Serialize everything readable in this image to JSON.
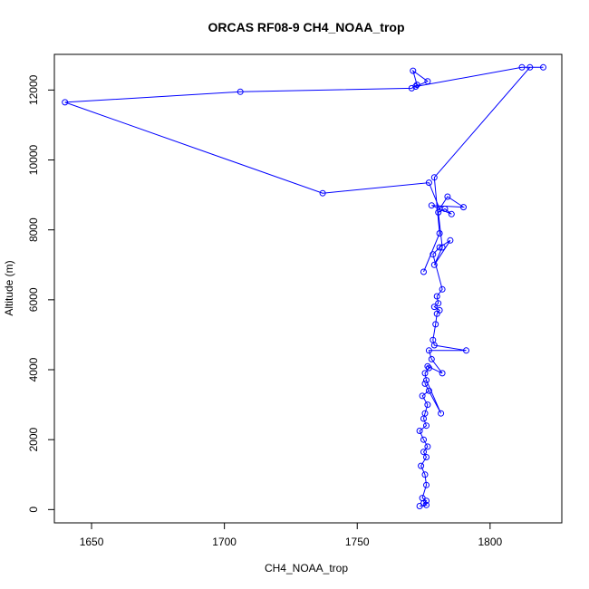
{
  "chart_data": {
    "type": "line",
    "title": "ORCAS RF08-9 CH4_NOAA_trop",
    "xlabel": "CH4_NOAA_trop",
    "ylabel": "Altitude (m)",
    "xlim": [
      1636,
      1827
    ],
    "ylim": [
      -380,
      13020
    ],
    "xticks": [
      1650,
      1700,
      1750,
      1800
    ],
    "yticks": [
      0,
      2000,
      4000,
      6000,
      8000,
      10000,
      12000
    ],
    "grid": false,
    "series_color": "#0000ff",
    "series": [
      {
        "x": [
          1773.5,
          1776.0,
          1775.0,
          1776.0,
          1774.5,
          1776.0,
          1775.5,
          1774.0,
          1776.0,
          1775.0,
          1776.5,
          1775.0,
          1773.5,
          1776.0,
          1775.0,
          1775.5,
          1776.5,
          1774.5,
          1777.0,
          1775.5,
          1781.5,
          1776.0,
          1775.5,
          1777.0,
          1776.5,
          1782.0,
          1778.0,
          1777.0,
          1791.0,
          1779.0,
          1778.5,
          1779.5,
          1780.0,
          1781.0,
          1779.0,
          1780.5,
          1780.0,
          1782.0,
          1778.5,
          1781.0,
          1785.0,
          1779.0,
          1782.0,
          1780.5,
          1783.0,
          1785.5,
          1778.0,
          1790.0,
          1784.0,
          1781.0,
          1777.0,
          1737.0,
          1640.0,
          1706.0,
          1770.5,
          1772.5,
          1771.0,
          1776.5,
          1772.0,
          1812.0,
          1820.0,
          1815.0,
          1779.0,
          1781.0,
          1775.0
        ],
        "y": [
          100,
          130,
          180,
          250,
          330,
          700,
          1000,
          1250,
          1500,
          1650,
          1800,
          2000,
          2250,
          2400,
          2600,
          2750,
          3000,
          3250,
          3400,
          3600,
          2750,
          3700,
          3900,
          4050,
          4100,
          3900,
          4300,
          4550,
          4550,
          4700,
          4850,
          5300,
          5600,
          5700,
          5800,
          5900,
          6100,
          6300,
          7300,
          7500,
          7700,
          7000,
          7500,
          8500,
          8600,
          8450,
          8700,
          8650,
          8950,
          8600,
          9350,
          9050,
          11650,
          11950,
          12050,
          12150,
          12550,
          12250,
          12100,
          12650,
          12650,
          12650,
          9500,
          7900,
          6800
        ]
      }
    ]
  }
}
